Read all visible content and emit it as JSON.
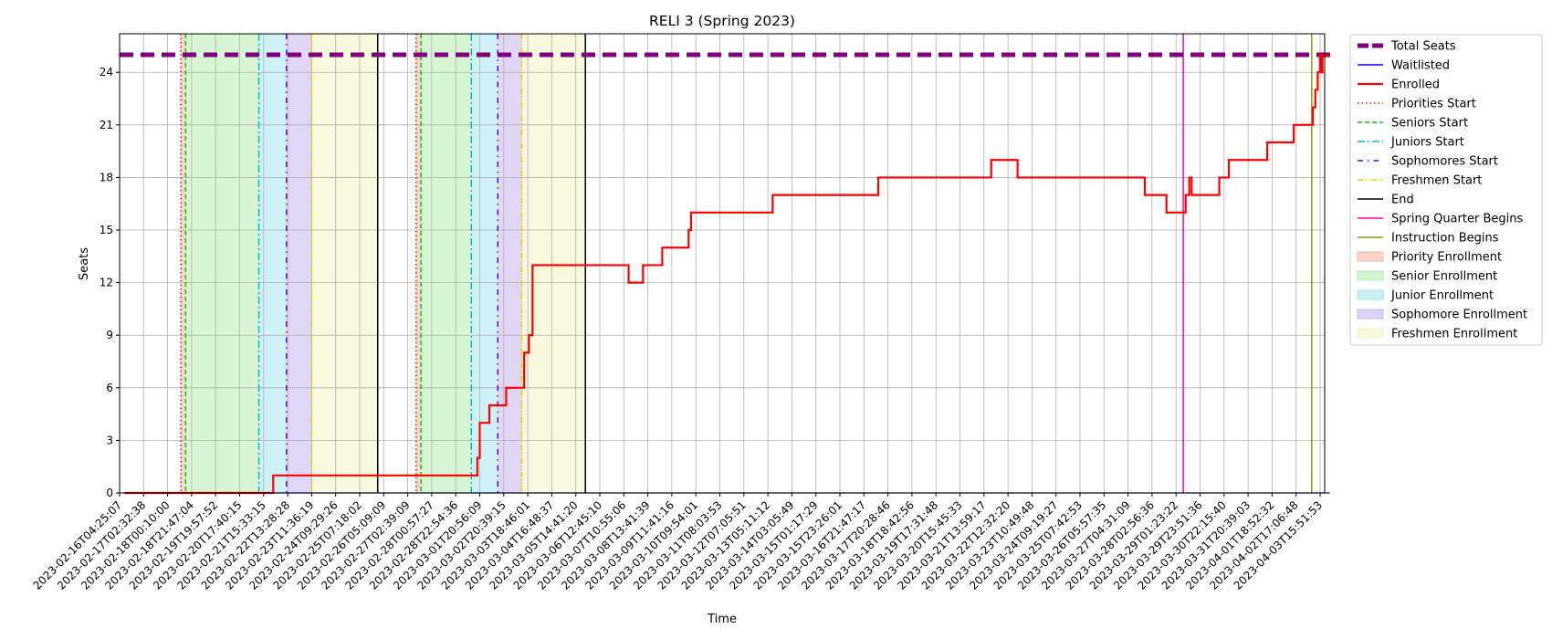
{
  "chart_data": {
    "type": "line",
    "title": "RELI 3 (Spring 2023)",
    "xlabel": "Time",
    "ylabel": "Seats",
    "ylim": [
      0,
      26.2
    ],
    "yticks": [
      0,
      3,
      6,
      9,
      12,
      15,
      18,
      21,
      24
    ],
    "grid": true,
    "legend_placement": "outside-right-top",
    "x_tick_labels": [
      "2023-02-16T04:25:07",
      "2023-02-17T02:32:38",
      "2023-02-18T00:10:00",
      "2023-02-18T21:47:04",
      "2023-02-19T19:57:52",
      "2023-02-20T17:40:15",
      "2023-02-21T15:33:15",
      "2023-02-22T13:28:28",
      "2023-02-23T11:36:19",
      "2023-02-24T09:29:26",
      "2023-02-25T07:18:02",
      "2023-02-26T05:09:09",
      "2023-02-27T02:39:09",
      "2023-02-28T00:57:27",
      "2023-02-28T22:54:36",
      "2023-03-01T20:56:09",
      "2023-03-02T20:39:15",
      "2023-03-03T18:46:01",
      "2023-03-04T16:48:37",
      "2023-03-05T14:41:20",
      "2023-03-06T12:45:10",
      "2023-03-07T10:55:06",
      "2023-03-08T13:41:39",
      "2023-03-09T11:41:16",
      "2023-03-10T09:54:01",
      "2023-03-11T08:03:53",
      "2023-03-12T07:05:51",
      "2023-03-13T05:11:12",
      "2023-03-14T03:05:49",
      "2023-03-15T01:17:29",
      "2023-03-15T23:26:01",
      "2023-03-16T21:47:17",
      "2023-03-17T20:28:46",
      "2023-03-18T18:42:56",
      "2023-03-19T17:31:48",
      "2023-03-20T15:45:33",
      "2023-03-21T13:59:17",
      "2023-03-22T12:32:20",
      "2023-03-23T10:49:48",
      "2023-03-24T09:19:27",
      "2023-03-25T07:42:53",
      "2023-03-26T05:57:35",
      "2023-03-27T04:31:09",
      "2023-03-28T02:56:36",
      "2023-03-29T01:23:22",
      "2023-03-29T23:51:36",
      "2023-03-30T22:15:40",
      "2023-03-31T20:39:03",
      "2023-04-01T18:52:32",
      "2023-04-02T17:06:48",
      "2023-04-03T15:51:53"
    ],
    "x_range_ticks": [
      -0.2,
      50.3
    ],
    "series": [
      {
        "name": "Total Seats",
        "color": "#800080",
        "style": "dashed-thick",
        "x": [
          -0.2,
          50.3
        ],
        "y": [
          25,
          25
        ]
      },
      {
        "name": "Waitlisted",
        "color": "#0000ff",
        "style": "solid",
        "x": [
          0.0,
          50.2
        ],
        "y": [
          0,
          0
        ]
      },
      {
        "name": "Enrolled",
        "color": "#ff0000",
        "style": "step",
        "x": [
          0.0,
          6.1,
          6.2,
          14.6,
          14.7,
          14.8,
          14.9,
          15.2,
          15.9,
          16.6,
          16.65,
          16.75,
          16.85,
          16.9,
          17.0,
          20.4,
          21.0,
          21.5,
          21.6,
          22.2,
          22.4,
          23.4,
          23.5,
          23.6,
          24.0,
          25.0,
          25.5,
          26.0,
          26.5,
          27.0,
          28.0,
          29.0,
          30.0,
          31.0,
          31.3,
          31.4,
          32.0,
          33.0,
          34.0,
          35.0,
          36.0,
          36.1,
          37.2,
          37.4,
          38.0,
          39.0,
          40.0,
          41.0,
          42.0,
          42.5,
          43.0,
          43.4,
          43.5,
          43.6,
          43.7,
          44.2,
          44.35,
          44.45,
          45.0,
          45.6,
          45.8,
          46.0,
          47.5,
          47.6,
          48.6,
          48.7,
          49.4,
          49.5,
          49.6,
          49.7,
          49.8,
          49.85,
          49.9,
          50.0,
          50.1,
          50.2
        ],
        "y": [
          0,
          0,
          1,
          1,
          2,
          4,
          4,
          5,
          6,
          6,
          8,
          8,
          9,
          9,
          13,
          13,
          12,
          12,
          13,
          13,
          14,
          14,
          15,
          16,
          16,
          16,
          16,
          16,
          16,
          17,
          17,
          17,
          17,
          17,
          17,
          18,
          18,
          18,
          18,
          18,
          18,
          19,
          18,
          18,
          18,
          18,
          18,
          18,
          18,
          17,
          17,
          16,
          16,
          16,
          16,
          17,
          18,
          17,
          17,
          18,
          18,
          19,
          19,
          20,
          20,
          21,
          21,
          22,
          23,
          24,
          25,
          24,
          25,
          25,
          25,
          25
        ]
      }
    ],
    "vlines": [
      {
        "name": "Priorities Start",
        "color": "#ff0000",
        "style": "dotted",
        "x": [
          2.35,
          12.15
        ]
      },
      {
        "name": "Seniors Start",
        "color": "#00cc00",
        "style": "dashed",
        "x": [
          2.55,
          12.35
        ]
      },
      {
        "name": "Juniors Start",
        "color": "#00c0c0",
        "style": "dashdot",
        "x": [
          5.6,
          14.45
        ]
      },
      {
        "name": "Sophomores Start",
        "color": "#6600cc",
        "style": "loosedashdot",
        "x": [
          6.75,
          15.55
        ]
      },
      {
        "name": "Freshmen Start",
        "color": "#e6d200",
        "style": "dashdotdot",
        "x": [
          7.8,
          16.55
        ]
      },
      {
        "name": "End",
        "color": "#000000",
        "style": "solid",
        "x": [
          10.55,
          19.2
        ]
      },
      {
        "name": "Spring Quarter Begins",
        "color": "#ff00aa",
        "style": "solid",
        "x": [
          44.1
        ]
      },
      {
        "name": "Instruction Begins",
        "color": "#7fa500",
        "style": "solid",
        "x": [
          49.45
        ]
      }
    ],
    "spans": [
      {
        "name": "Priority Enrollment",
        "color": "#f4b8a4",
        "ranges": [
          [
            2.35,
            2.55
          ],
          [
            12.15,
            12.35
          ]
        ]
      },
      {
        "name": "Senior Enrollment",
        "color": "#b7ebb0",
        "ranges": [
          [
            2.55,
            5.6
          ],
          [
            12.35,
            14.45
          ]
        ]
      },
      {
        "name": "Junior Enrollment",
        "color": "#a6e6ec",
        "ranges": [
          [
            5.6,
            6.75
          ],
          [
            14.45,
            15.55
          ]
        ]
      },
      {
        "name": "Sophomore Enrollment",
        "color": "#c8b4ee",
        "ranges": [
          [
            6.75,
            7.8
          ],
          [
            15.55,
            16.55
          ]
        ]
      },
      {
        "name": "Freshmen Enrollment",
        "color": "#f2f2c0",
        "ranges": [
          [
            7.8,
            10.55
          ],
          [
            16.55,
            19.2
          ]
        ]
      }
    ],
    "legend": [
      {
        "label": "Total Seats",
        "color": "#800080",
        "kind": "line-dashed-thick"
      },
      {
        "label": "Waitlisted",
        "color": "#0000ff",
        "kind": "line-solid"
      },
      {
        "label": "Enrolled",
        "color": "#ff0000",
        "kind": "line-solid-thick"
      },
      {
        "label": "Priorities Start",
        "color": "#ff0000",
        "kind": "line-dotted"
      },
      {
        "label": "Seniors Start",
        "color": "#00cc00",
        "kind": "line-dashed"
      },
      {
        "label": "Juniors Start",
        "color": "#00c0c0",
        "kind": "line-dashdot"
      },
      {
        "label": "Sophomores Start",
        "color": "#6600cc",
        "kind": "line-loosedashdot"
      },
      {
        "label": "Freshmen Start",
        "color": "#e6d200",
        "kind": "line-dashdotdot"
      },
      {
        "label": "End",
        "color": "#000000",
        "kind": "line-solid"
      },
      {
        "label": "Spring Quarter Begins",
        "color": "#ff00aa",
        "kind": "line-solid"
      },
      {
        "label": "Instruction Begins",
        "color": "#7fa500",
        "kind": "line-solid"
      },
      {
        "label": "Priority Enrollment",
        "color": "#f4b8a4",
        "kind": "patch"
      },
      {
        "label": "Senior Enrollment",
        "color": "#b7ebb0",
        "kind": "patch"
      },
      {
        "label": "Junior Enrollment",
        "color": "#a6e6ec",
        "kind": "patch"
      },
      {
        "label": "Sophomore Enrollment",
        "color": "#c8b4ee",
        "kind": "patch"
      },
      {
        "label": "Freshmen Enrollment",
        "color": "#f2f2c0",
        "kind": "patch"
      }
    ]
  }
}
